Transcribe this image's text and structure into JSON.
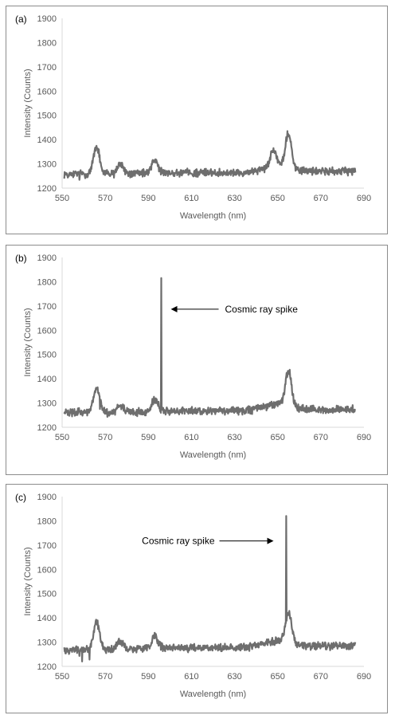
{
  "chart_data": [
    {
      "type": "line",
      "panel_label": "(a)",
      "xlabel": "Wavelength (nm)",
      "ylabel": "Intensity (Counts)",
      "xlim": [
        550,
        690
      ],
      "ylim": [
        1200,
        1900
      ],
      "xticks": [
        "550",
        "570",
        "590",
        "610",
        "630",
        "650",
        "670",
        "690"
      ],
      "yticks": [
        "1200",
        "1300",
        "1400",
        "1500",
        "1600",
        "1700",
        "1800",
        "1900"
      ],
      "grid": false,
      "line_color": "#6e6e6e",
      "x_range": [
        551,
        686
      ],
      "baseline": 1262,
      "peaks": [
        [
          566,
          1375
        ],
        [
          577,
          1300
        ],
        [
          593,
          1318
        ],
        [
          648,
          1330
        ],
        [
          655,
          1405
        ]
      ],
      "spike": null,
      "annotation": null
    },
    {
      "type": "line",
      "panel_label": "(b)",
      "xlabel": "Wavelength (nm)",
      "ylabel": "Intensity (Counts)",
      "xlim": [
        550,
        690
      ],
      "ylim": [
        1200,
        1900
      ],
      "xticks": [
        "550",
        "570",
        "590",
        "610",
        "630",
        "650",
        "670",
        "690"
      ],
      "yticks": [
        "1200",
        "1300",
        "1400",
        "1500",
        "1600",
        "1700",
        "1800",
        "1900"
      ],
      "grid": false,
      "line_color": "#6e6e6e",
      "x_range": [
        551,
        686
      ],
      "baseline": 1265,
      "peaks": [
        [
          566,
          1370
        ],
        [
          577,
          1295
        ],
        [
          593,
          1315
        ],
        [
          655,
          1410
        ]
      ],
      "spike": [
        596,
        1815
      ],
      "annotation": {
        "text": "Cosmic ray spike",
        "arrow": "left"
      }
    },
    {
      "type": "line",
      "panel_label": "(c)",
      "xlabel": "Wavelength (nm)",
      "ylabel": "Intensity (Counts)",
      "xlim": [
        550,
        690
      ],
      "ylim": [
        1200,
        1900
      ],
      "xticks": [
        "550",
        "570",
        "590",
        "610",
        "630",
        "650",
        "670",
        "690"
      ],
      "yticks": [
        "1200",
        "1300",
        "1400",
        "1500",
        "1600",
        "1700",
        "1800",
        "1900"
      ],
      "grid": false,
      "line_color": "#6e6e6e",
      "x_range": [
        551,
        686
      ],
      "baseline": 1275,
      "peaks": [
        [
          566,
          1385
        ],
        [
          577,
          1305
        ],
        [
          593,
          1325
        ],
        [
          655,
          1400
        ]
      ],
      "spike": [
        654,
        1820
      ],
      "annotation": {
        "text": "Cosmic ray spike",
        "arrow": "right"
      }
    }
  ]
}
